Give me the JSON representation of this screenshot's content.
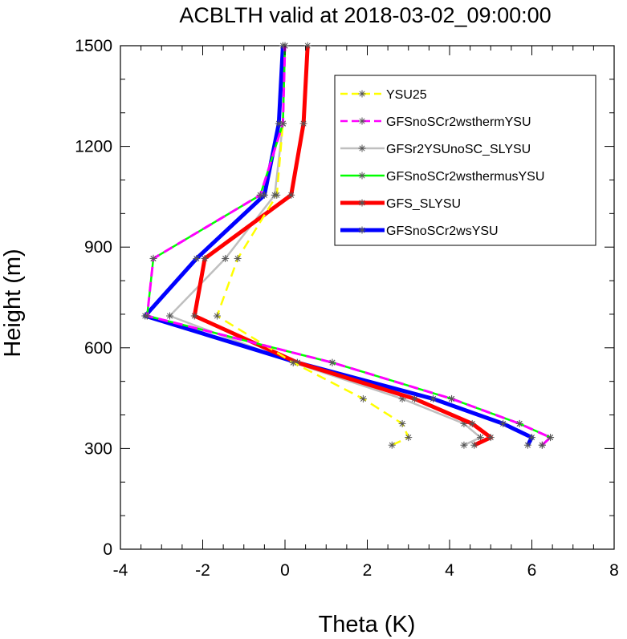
{
  "chart_data": {
    "type": "line",
    "title": "ACBLTH valid at 2018-03-02_09:00:00",
    "xlabel": "Theta (K)",
    "ylabel": "Height (m)",
    "xlim": [
      -4,
      8
    ],
    "ylim": [
      0,
      1500
    ],
    "xticks": [
      -4,
      -2,
      0,
      2,
      4,
      6,
      8
    ],
    "yticks": [
      0,
      300,
      600,
      900,
      1200,
      1500
    ],
    "xtick_labels": [
      "-4",
      "-2",
      "0",
      "2",
      "4",
      "6",
      "8"
    ],
    "ytick_labels": [
      "0",
      "300",
      "600",
      "900",
      "1200",
      "1500"
    ],
    "grid": false,
    "legend_position": "top-right",
    "series": [
      {
        "name": "YSU25",
        "color": "#ffff00",
        "dash": "dashed",
        "points": [
          [
            2.6,
            310
          ],
          [
            3.0,
            333
          ],
          [
            2.85,
            374
          ],
          [
            1.9,
            448
          ],
          [
            0.2,
            556
          ],
          [
            -1.65,
            695
          ],
          [
            -1.15,
            866
          ],
          [
            -0.2,
            1055
          ],
          [
            -0.05,
            1268
          ],
          [
            0.0,
            1500
          ]
        ]
      },
      {
        "name": "GFSnoSCr2wsthermYSU",
        "color": "#ff00ff",
        "dash": "dashed",
        "points": [
          [
            6.25,
            310
          ],
          [
            6.45,
            333
          ],
          [
            5.7,
            374
          ],
          [
            4.05,
            448
          ],
          [
            1.15,
            556
          ],
          [
            -3.35,
            695
          ],
          [
            -3.2,
            866
          ],
          [
            -0.6,
            1055
          ],
          [
            -0.05,
            1268
          ],
          [
            0.0,
            1500
          ]
        ]
      },
      {
        "name": "GFSr2YSUnoSC_SLYSU",
        "color": "#bfbfbf",
        "dash": "solid",
        "points": [
          [
            4.35,
            310
          ],
          [
            4.75,
            333
          ],
          [
            4.35,
            374
          ],
          [
            2.85,
            448
          ],
          [
            0.2,
            556
          ],
          [
            -2.8,
            695
          ],
          [
            -1.45,
            866
          ],
          [
            -0.25,
            1055
          ],
          [
            -0.05,
            1268
          ],
          [
            0.0,
            1500
          ]
        ]
      },
      {
        "name": "GFSnoSCr2wsthermusYSU",
        "color": "#00ff00",
        "dash": "solid",
        "points": [
          [
            6.25,
            310
          ],
          [
            6.45,
            333
          ],
          [
            5.7,
            374
          ],
          [
            4.05,
            448
          ],
          [
            1.15,
            556
          ],
          [
            -3.35,
            695
          ],
          [
            -3.2,
            866
          ],
          [
            -0.6,
            1055
          ],
          [
            -0.05,
            1268
          ],
          [
            0.0,
            1500
          ]
        ]
      },
      {
        "name": "GFS_SLYSU",
        "color": "#ff0000",
        "dash": "solid",
        "points": [
          [
            4.6,
            310
          ],
          [
            5.0,
            333
          ],
          [
            4.55,
            374
          ],
          [
            3.15,
            448
          ],
          [
            0.3,
            556
          ],
          [
            -2.2,
            695
          ],
          [
            -1.95,
            866
          ],
          [
            0.15,
            1055
          ],
          [
            0.45,
            1268
          ],
          [
            0.55,
            1500
          ]
        ]
      },
      {
        "name": "GFSnoSCr2wsYSU",
        "color": "#0000ff",
        "dash": "solid",
        "points": [
          [
            5.9,
            310
          ],
          [
            6.0,
            333
          ],
          [
            5.3,
            374
          ],
          [
            3.6,
            448
          ],
          [
            0.3,
            556
          ],
          [
            -3.4,
            695
          ],
          [
            -2.15,
            866
          ],
          [
            -0.5,
            1055
          ],
          [
            -0.15,
            1268
          ],
          [
            -0.05,
            1500
          ]
        ]
      }
    ]
  }
}
